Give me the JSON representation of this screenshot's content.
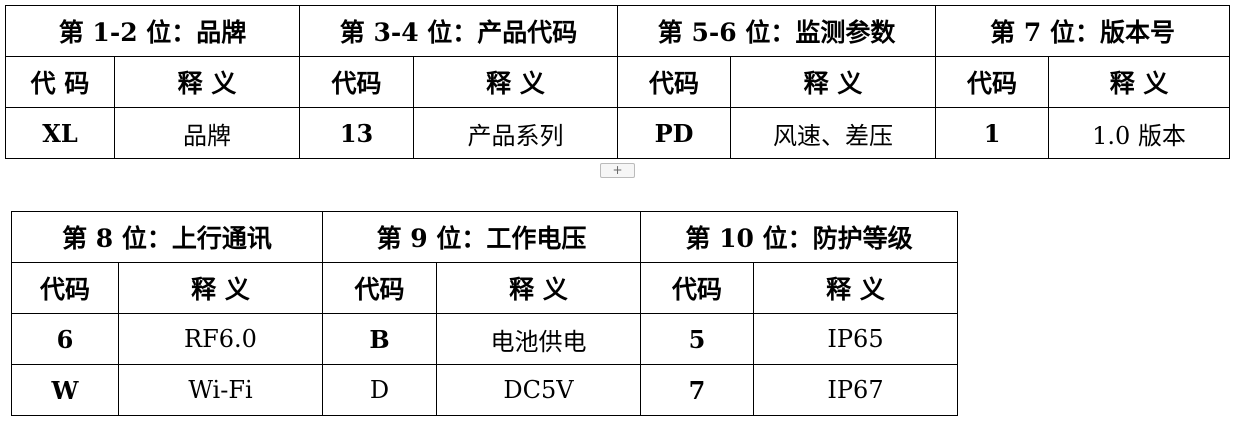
{
  "table1": {
    "groups": [
      "第 1-2 位：品牌",
      "第 3-4 位：产品代码",
      "第 5-6 位：监测参数",
      "第 7 位：版本号"
    ],
    "code_label": "代码",
    "code_label_spaced": "代 码",
    "meaning_label": "释 义",
    "row": [
      "XL",
      "品牌",
      "13",
      "产品系列",
      "PD",
      "风速、差压",
      "1",
      "1.0 版本"
    ]
  },
  "add_row_label": "+",
  "table2": {
    "groups": [
      "第 8 位：上行通讯",
      "第 9 位：工作电压",
      "第 10 位：防护等级"
    ],
    "code_label": "代码",
    "meaning_label": "释 义",
    "rows": [
      [
        "6",
        "RF6.0",
        "B",
        "电池供电",
        "5",
        "IP65"
      ],
      [
        "W",
        "Wi-Fi",
        "D",
        "DC5V",
        "7",
        "IP67"
      ]
    ]
  }
}
